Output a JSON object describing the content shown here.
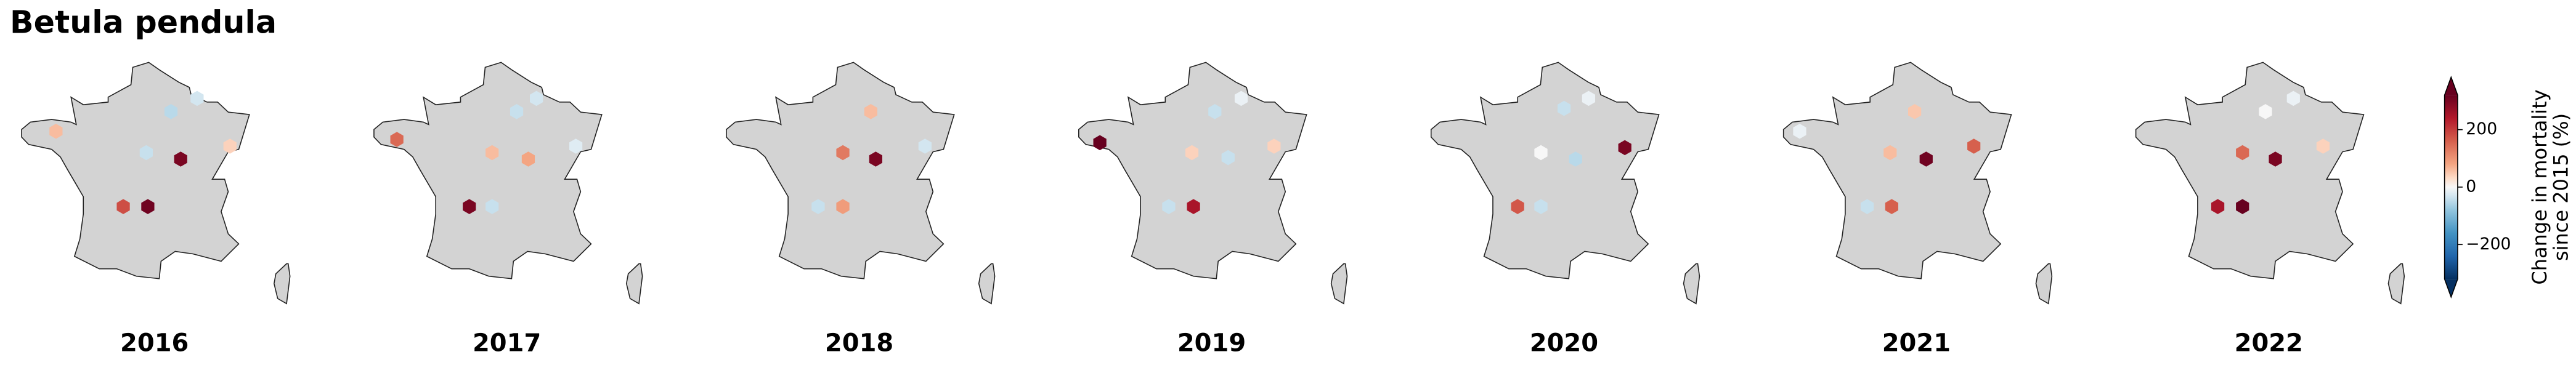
{
  "title": "Betula pendula",
  "chart_data": {
    "type": "hexmap",
    "colormap": "RdBu_r",
    "colorbar": {
      "label": [
        "Change in mortality",
        "since 2015 (%)"
      ],
      "lim": [
        -320,
        320
      ],
      "ticks": [
        {
          "value": -200,
          "label": "−200"
        },
        0,
        200
      ]
    },
    "panels": [
      {
        "title": "2016",
        "lon": [
          -2.75,
          3.76,
          5.24,
          2.36,
          4.31,
          7.1,
          1.06,
          2.45
        ],
        "lat": [
          48.33,
          49.12,
          49.65,
          47.47,
          47.21,
          47.73,
          45.3,
          45.3
        ],
        "values": [
          60,
          -50,
          -30,
          -40,
          300,
          40,
          180,
          310
        ]
      },
      {
        "title": "2017",
        "lon": [
          -3.4,
          3.38,
          4.5,
          1.99,
          4.04,
          6.73,
          0.7,
          1.99
        ],
        "lat": [
          48.0,
          49.12,
          49.65,
          47.47,
          47.21,
          47.73,
          45.3,
          45.3
        ],
        "values": [
          150,
          -40,
          -30,
          60,
          80,
          -20,
          300,
          -40
        ]
      },
      {
        "title": "2018",
        "lon": [
          3.48,
          1.9,
          3.76,
          6.55,
          0.5,
          1.9
        ],
        "lat": [
          49.12,
          47.47,
          47.21,
          47.73,
          45.3,
          45.3
        ],
        "values": [
          60,
          130,
          300,
          -30,
          -40,
          90
        ]
      },
      {
        "title": "2019",
        "lon": [
          -3.5,
          3.01,
          4.5,
          1.71,
          3.76,
          6.36,
          0.4,
          1.8
        ],
        "lat": [
          47.87,
          49.12,
          49.65,
          47.47,
          47.27,
          47.73,
          45.3,
          45.3
        ],
        "values": [
          320,
          -40,
          -10,
          40,
          -40,
          40,
          -40,
          250
        ]
      },
      {
        "title": "2020",
        "lon": [
          2.83,
          4.22,
          1.52,
          3.48,
          6.27,
          0.2,
          1.52
        ],
        "lat": [
          49.25,
          49.65,
          47.47,
          47.21,
          47.67,
          45.3,
          45.3
        ],
        "values": [
          -40,
          -10,
          0,
          -50,
          300,
          170,
          -40
        ]
      },
      {
        "title": "2021",
        "lon": [
          2.73,
          1.34,
          3.38,
          6.08,
          0.04,
          1.43,
          -3.78
        ],
        "lat": [
          49.12,
          47.47,
          47.21,
          47.73,
          45.3,
          45.3,
          48.33
        ],
        "values": [
          50,
          60,
          310,
          160,
          -40,
          160,
          -10
        ]
      },
      {
        "title": "2022",
        "lon": [
          2.64,
          1.34,
          3.2,
          5.9,
          -0.06,
          1.34,
          4.22
        ],
        "lat": [
          49.12,
          47.47,
          47.21,
          47.73,
          45.3,
          45.3,
          49.65
        ],
        "values": [
          0,
          150,
          300,
          40,
          250,
          330,
          -10
        ]
      }
    ]
  }
}
